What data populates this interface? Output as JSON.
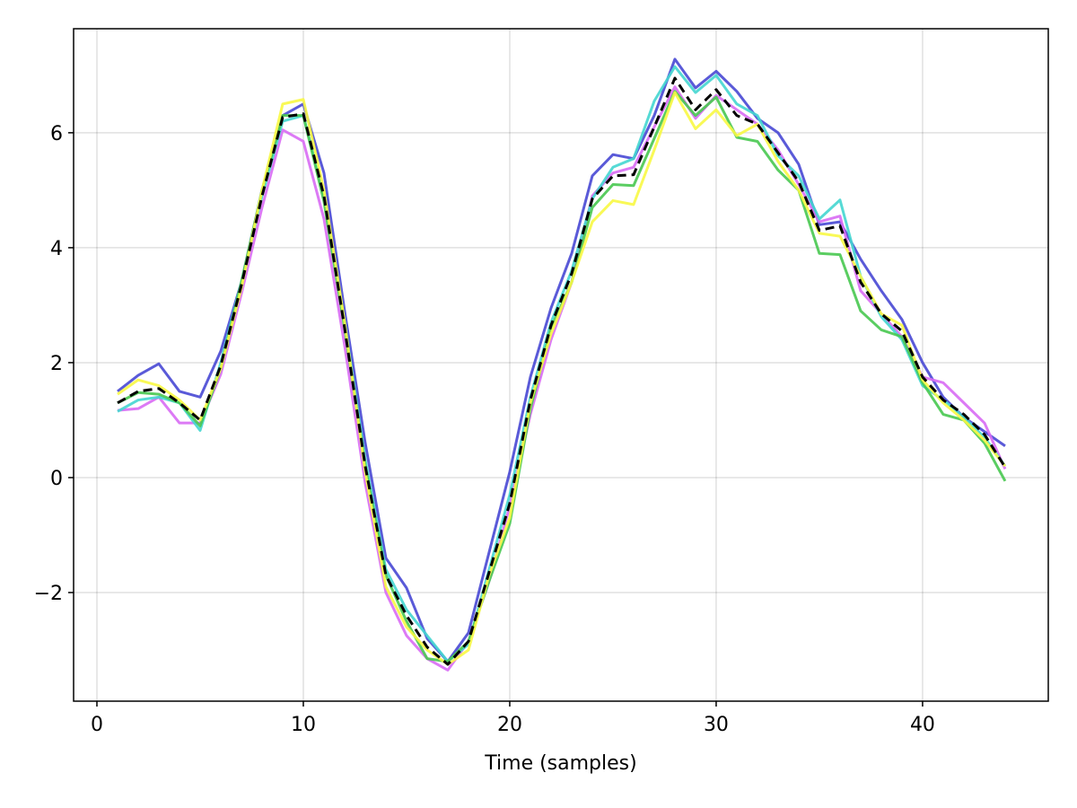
{
  "chart_data": {
    "type": "line",
    "xlabel": "Time (samples)",
    "x": [
      1,
      2,
      3,
      4,
      5,
      6,
      7,
      8,
      9,
      10,
      11,
      12,
      13,
      14,
      15,
      16,
      17,
      18,
      19,
      20,
      21,
      22,
      23,
      24,
      25,
      26,
      27,
      28,
      29,
      30,
      31,
      32,
      33,
      34,
      35,
      36,
      37,
      38,
      39,
      40,
      41,
      42,
      43,
      44
    ],
    "series": [
      {
        "color": "#4848d4",
        "values": [
          1.5,
          1.78,
          1.98,
          1.5,
          1.4,
          2.2,
          3.4,
          5.0,
          6.3,
          6.5,
          5.3,
          2.9,
          0.6,
          -1.4,
          -1.92,
          -2.8,
          -3.2,
          -2.7,
          -1.3,
          0.1,
          1.75,
          2.95,
          3.9,
          5.25,
          5.62,
          5.55,
          6.3,
          7.28,
          6.78,
          7.07,
          6.72,
          6.25,
          6.0,
          5.45,
          4.4,
          4.45,
          3.8,
          3.25,
          2.75,
          2.0,
          1.4,
          1.05,
          0.8,
          0.55
        ]
      },
      {
        "color": "#d86cf4",
        "values": [
          1.17,
          1.2,
          1.4,
          0.95,
          0.95,
          1.8,
          3.2,
          4.7,
          6.05,
          5.85,
          4.5,
          2.3,
          -0.1,
          -2.0,
          -2.75,
          -3.15,
          -3.35,
          -2.85,
          -1.8,
          -0.5,
          1.1,
          2.4,
          3.4,
          4.9,
          5.3,
          5.4,
          6.1,
          6.8,
          6.25,
          6.65,
          6.4,
          6.15,
          5.7,
          5.1,
          4.45,
          4.55,
          3.25,
          2.85,
          2.45,
          1.75,
          1.65,
          1.3,
          0.95,
          0.15
        ]
      },
      {
        "color": "#44d6d0",
        "values": [
          1.15,
          1.35,
          1.4,
          1.3,
          0.82,
          2.0,
          3.4,
          4.9,
          6.2,
          6.3,
          4.9,
          2.7,
          0.3,
          -1.6,
          -2.3,
          -2.75,
          -3.2,
          -2.9,
          -1.6,
          -0.3,
          1.4,
          2.7,
          3.6,
          4.85,
          5.4,
          5.55,
          6.55,
          7.15,
          6.7,
          7.0,
          6.5,
          6.3,
          5.6,
          5.25,
          4.5,
          4.83,
          3.5,
          2.8,
          2.4,
          1.6,
          1.35,
          1.05,
          0.7,
          0.2
        ]
      },
      {
        "color": "#48c850",
        "values": [
          1.3,
          1.48,
          1.45,
          1.3,
          0.9,
          1.9,
          3.4,
          5.0,
          6.3,
          6.3,
          4.8,
          2.6,
          0.2,
          -1.7,
          -2.5,
          -3.15,
          -3.2,
          -2.85,
          -1.8,
          -0.8,
          1.2,
          2.6,
          3.4,
          4.7,
          5.1,
          5.08,
          5.9,
          6.72,
          6.3,
          6.62,
          5.92,
          5.85,
          5.35,
          5.0,
          3.9,
          3.88,
          2.9,
          2.57,
          2.45,
          1.65,
          1.1,
          1.0,
          0.6,
          -0.06
        ]
      },
      {
        "color": "#f8f844",
        "values": [
          1.45,
          1.7,
          1.6,
          1.35,
          1.0,
          1.9,
          3.3,
          5.0,
          6.5,
          6.58,
          5.0,
          2.7,
          0.1,
          -1.9,
          -2.6,
          -3.0,
          -3.25,
          -3.0,
          -1.7,
          -0.7,
          1.3,
          2.5,
          3.4,
          4.45,
          4.82,
          4.75,
          5.7,
          6.7,
          6.07,
          6.4,
          5.95,
          6.15,
          5.5,
          5.0,
          4.25,
          4.2,
          3.5,
          2.85,
          2.65,
          1.7,
          1.3,
          1.0,
          0.65,
          0.2
        ]
      },
      {
        "color": "#000000",
        "dashed": true,
        "values": [
          1.3,
          1.5,
          1.55,
          1.3,
          1.0,
          1.95,
          3.35,
          4.9,
          6.27,
          6.33,
          4.9,
          2.6,
          0.2,
          -1.7,
          -2.4,
          -2.95,
          -3.25,
          -2.85,
          -1.65,
          -0.45,
          1.35,
          2.65,
          3.55,
          4.85,
          5.25,
          5.27,
          6.1,
          6.95,
          6.4,
          6.75,
          6.3,
          6.15,
          5.65,
          5.15,
          4.3,
          4.38,
          3.4,
          2.85,
          2.55,
          1.75,
          1.35,
          1.1,
          0.75,
          0.18
        ]
      }
    ],
    "xlim": [
      -1.13,
      46.09
    ],
    "ylim": [
      -3.89,
      7.81
    ],
    "xticks": [
      0,
      10,
      20,
      30,
      40
    ],
    "yticks": [
      {
        "value": -2,
        "label": "−2"
      },
      0,
      2,
      4,
      6
    ],
    "grid": true
  }
}
